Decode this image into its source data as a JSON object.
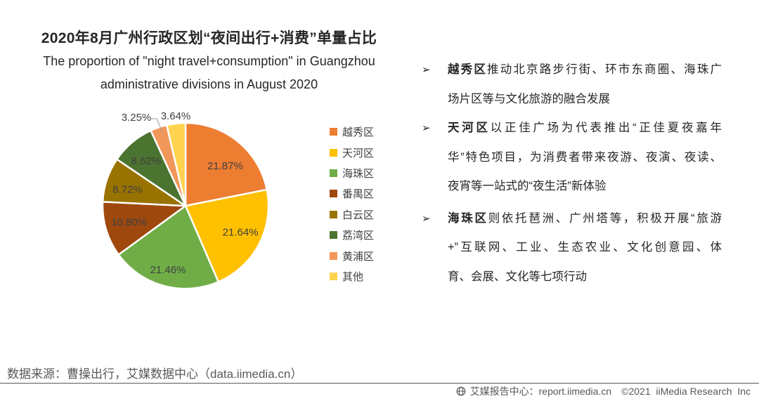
{
  "title": "2020年8月广州行政区划“夜间出行+消费”单量占比",
  "subtitle_en_line1": "The proportion of \"night travel+consumption\" in Guangzhou",
  "subtitle_en_line2": "administrative divisions in August 2020",
  "chart_data": {
    "type": "pie",
    "title": "2020年8月广州行政区划“夜间出行+消费”单量占比",
    "legend_position": "right",
    "slices": [
      {
        "label": "越秀区",
        "value": 21.87,
        "pct_label": "21.87%",
        "color": "#ED7D31"
      },
      {
        "label": "天河区",
        "value": 21.64,
        "pct_label": "21.64%",
        "color": "#FFC000"
      },
      {
        "label": "海珠区",
        "value": 21.46,
        "pct_label": "21.46%",
        "color": "#70AD47"
      },
      {
        "label": "番禺区",
        "value": 10.8,
        "pct_label": "10.80%",
        "color": "#9E480E"
      },
      {
        "label": "白云区",
        "value": 8.72,
        "pct_label": "8.72%",
        "color": "#997300"
      },
      {
        "label": "荔湾区",
        "value": 8.62,
        "pct_label": "8.62%",
        "color": "#4C7431"
      },
      {
        "label": "黄浦区",
        "value": 3.25,
        "pct_label": "3.25%",
        "color": "#F1975A"
      },
      {
        "label": "其他",
        "value": 3.64,
        "pct_label": "3.64%",
        "color": "#FFD34D"
      }
    ]
  },
  "bullets": {
    "marker": "➢",
    "items": [
      {
        "lead": "越秀区",
        "lines": [
          "推动北京路步行街、环市东商圈、海珠广",
          "场片区等与文化旅游的融合发展"
        ]
      },
      {
        "lead": "天河区",
        "lines": [
          "以正佳广场为代表推出“正佳夏夜嘉年",
          "华”特色项目，为消费者带来夜游、夜演、夜读、",
          "夜宵等一站式的“夜生活”新体验"
        ]
      },
      {
        "lead": "海珠区",
        "lines": [
          "则依托琶洲、广州塔等，积极开展“旅游",
          "+”互联网、工业、生态农业、文化创意园、体",
          "育、会展、文化等七项行动"
        ]
      }
    ]
  },
  "source_note": "数据来源：曹操出行，艾媒数据中心（data.iimedia.cn）",
  "footer": {
    "site": "艾媒报告中心：report.iimedia.cn",
    "copyright": "©2021  iiMedia Research  Inc"
  }
}
